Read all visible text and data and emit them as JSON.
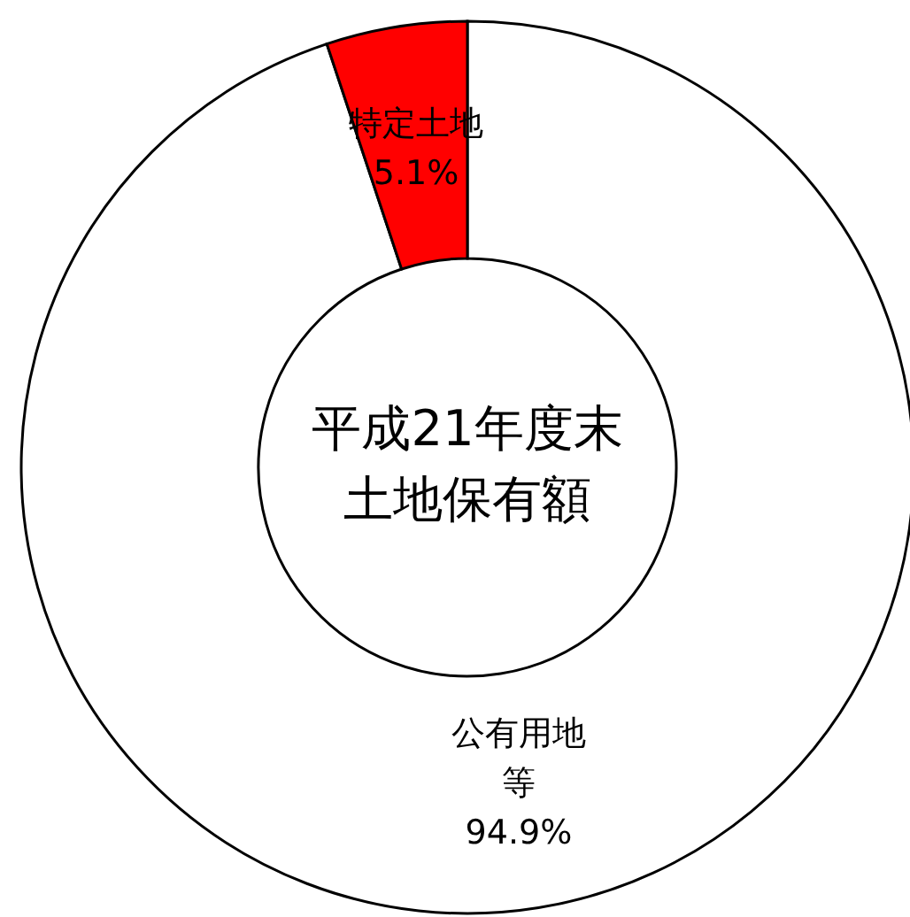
{
  "chart_data": {
    "type": "donut",
    "title": "平成21年度末土地保有額",
    "categories": [
      "公有用地等",
      "特定土地"
    ],
    "values": [
      94.9,
      5.1
    ],
    "colors": [
      "#ffffff",
      "#ff0000"
    ],
    "value_labels": [
      "94.9%",
      "5.1%"
    ]
  }
}
